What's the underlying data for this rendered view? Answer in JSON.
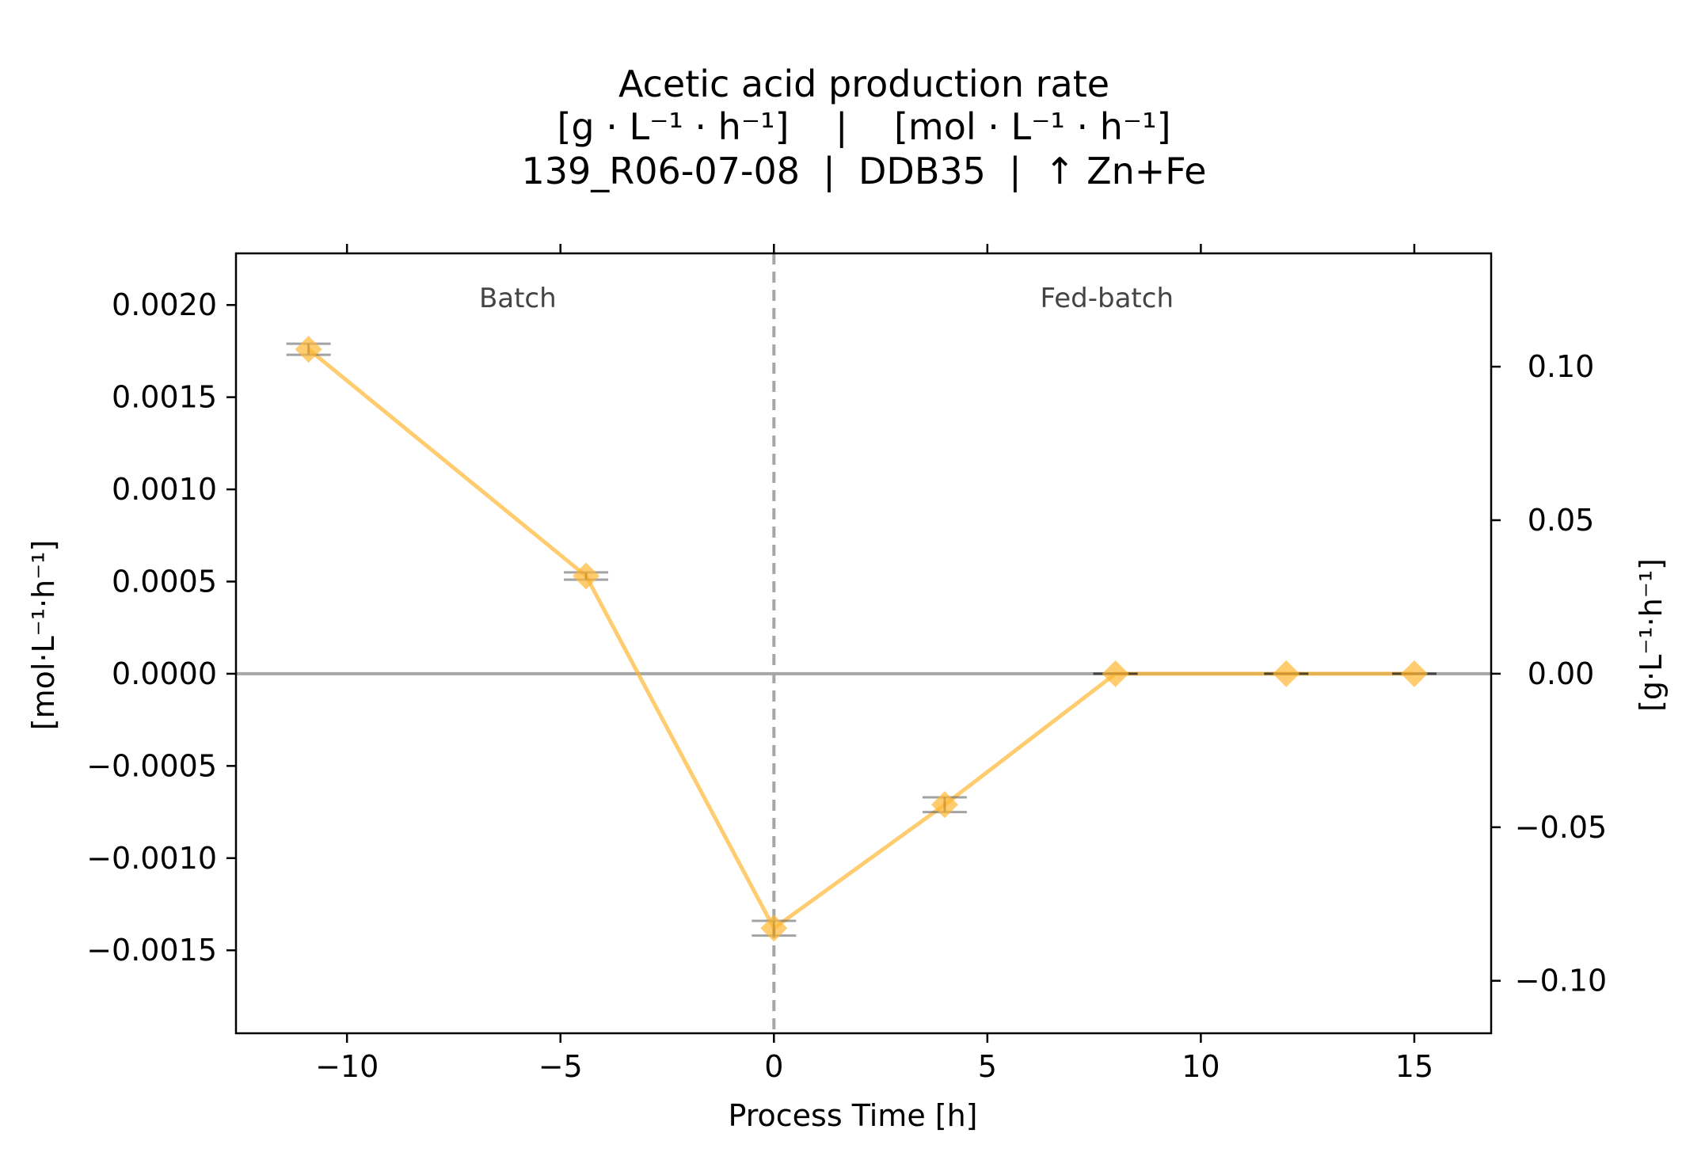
{
  "chart_data": {
    "type": "line",
    "title_lines": [
      "Acetic acid production rate",
      "[g · L⁻¹ · h⁻¹]    |    [mol · L⁻¹ · h⁻¹]",
      "139_R06-07-08  |  DDB35  |  ↑ Zn+Fe"
    ],
    "xlabel": "Process Time [h]",
    "ylabel_left": "[mol·L⁻¹·h⁻¹]",
    "ylabel_right": "[g·L⁻¹·h⁻¹]",
    "xlim": [
      -12.6,
      16.8
    ],
    "ylim_left": [
      -0.00195,
      0.00228
    ],
    "ylim_right": [
      -0.1171,
      0.1369
    ],
    "x_ticks": [
      -10,
      -5,
      0,
      5,
      10,
      15
    ],
    "x_tick_labels": [
      "−10",
      "−5",
      "0",
      "5",
      "10",
      "15"
    ],
    "y_left_ticks": [
      0.002,
      0.0015,
      0.001,
      0.0005,
      0.0,
      -0.0005,
      -0.001,
      -0.0015
    ],
    "y_left_tick_labels": [
      "0.0020",
      "0.0015",
      "0.0010",
      "0.0005",
      "0.0000",
      "−0.0005",
      "−0.0010",
      "−0.0015"
    ],
    "y_right_ticks": [
      0.1,
      0.05,
      0.0,
      -0.05,
      -0.1
    ],
    "y_right_tick_labels": [
      "0.10",
      "0.05",
      "0.00",
      "−0.05",
      "−0.10"
    ],
    "phase_divider_x": 0,
    "phases": [
      {
        "label": "Batch",
        "x": -6
      },
      {
        "label": "Fed-batch",
        "x": 7.8
      }
    ],
    "zero_line": true,
    "grid": false,
    "series": [
      {
        "color": "#ffb732",
        "marker": "diamond",
        "x": [
          -10.9,
          -4.4,
          0.0,
          4.0,
          8.0,
          12.0,
          15.0
        ],
        "y": [
          0.00176,
          0.00053,
          -0.00138,
          -0.00071,
          0.0,
          0.0,
          0.0
        ],
        "yerr": [
          3e-05,
          2e-05,
          4e-05,
          4e-05,
          0.0,
          0.0,
          0.0
        ]
      }
    ]
  }
}
